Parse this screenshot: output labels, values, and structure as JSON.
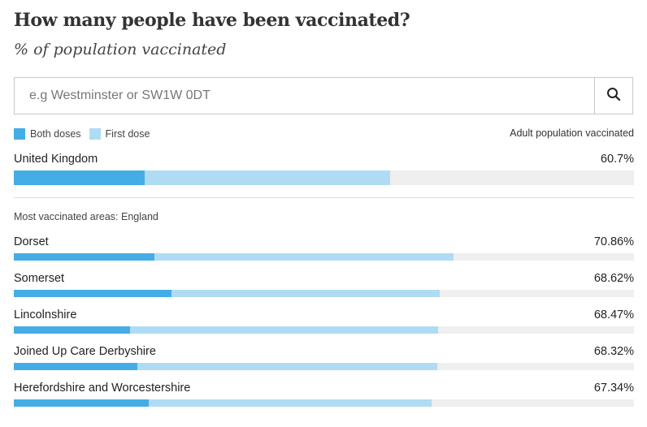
{
  "header": {
    "title": "How many people have been vaccinated?",
    "subtitle": "% of population vaccinated"
  },
  "search": {
    "placeholder": "e.g Westminster or SW1W 0DT",
    "icon": "search-icon"
  },
  "legend": {
    "both_doses": "Both doses",
    "first_dose": "First dose",
    "right_label": "Adult population vaccinated"
  },
  "colors": {
    "both_doses": "#45ade6",
    "first_dose": "#afdcf4",
    "track": "#efefef"
  },
  "section_label": "Most vaccinated areas: England",
  "chart_data": {
    "type": "bar",
    "orientation": "horizontal",
    "stacked": true,
    "xlim": [
      0,
      100
    ],
    "series": [
      {
        "name": "Both doses"
      },
      {
        "name": "First dose"
      }
    ],
    "national": {
      "name": "United Kingdom",
      "value_label": "60.7%",
      "both_doses": 21.1,
      "first_dose": 60.7
    },
    "rows": [
      {
        "name": "Dorset",
        "value_label": "70.86%",
        "both_doses": 22.7,
        "first_dose": 70.86
      },
      {
        "name": "Somerset",
        "value_label": "68.62%",
        "both_doses": 25.4,
        "first_dose": 68.62
      },
      {
        "name": "Lincolnshire",
        "value_label": "68.47%",
        "both_doses": 18.8,
        "first_dose": 68.47
      },
      {
        "name": "Joined Up Care Derbyshire",
        "value_label": "68.32%",
        "both_doses": 19.9,
        "first_dose": 68.32
      },
      {
        "name": "Herefordshire and Worcestershire",
        "value_label": "67.34%",
        "both_doses": 21.8,
        "first_dose": 67.34
      }
    ]
  }
}
